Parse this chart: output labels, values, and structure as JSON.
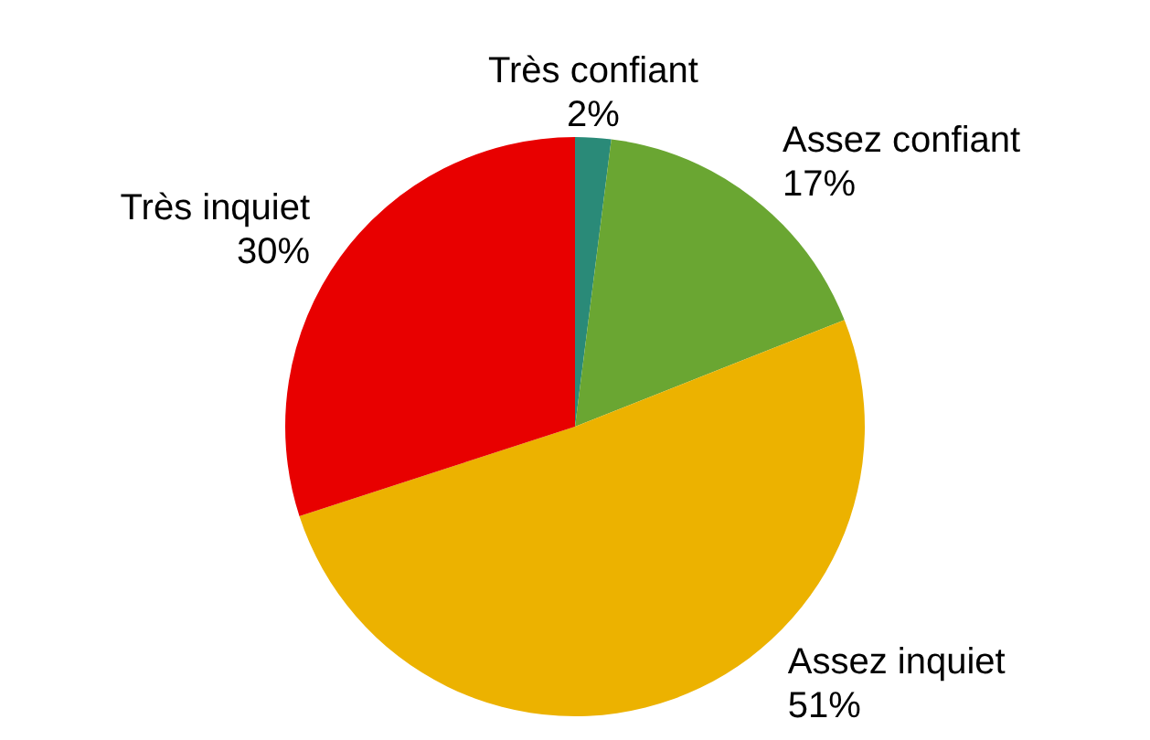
{
  "chart_data": {
    "type": "pie",
    "categories": [
      "Très confiant",
      "Assez confiant",
      "Assez inquiet",
      "Très inquiet"
    ],
    "values": [
      2,
      17,
      51,
      30
    ],
    "colors": [
      "#2a8a78",
      "#6aa632",
      "#ecb200",
      "#e80000"
    ],
    "value_labels": [
      "2%",
      "17%",
      "51%",
      "30%"
    ],
    "legend": false
  }
}
